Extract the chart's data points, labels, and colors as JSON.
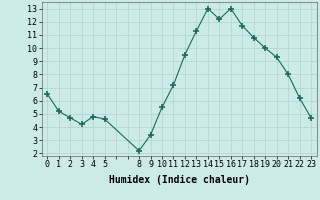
{
  "x": [
    0,
    1,
    2,
    3,
    4,
    5,
    8,
    9,
    10,
    11,
    12,
    13,
    14,
    15,
    16,
    17,
    18,
    19,
    20,
    21,
    22,
    23
  ],
  "y": [
    6.5,
    5.2,
    4.7,
    4.2,
    4.8,
    4.6,
    2.2,
    3.4,
    5.5,
    7.2,
    9.5,
    11.3,
    13.0,
    12.2,
    13.0,
    11.7,
    10.8,
    10.0,
    9.3,
    8.0,
    6.2,
    4.7
  ],
  "line_color": "#1a6b5a",
  "marker": "+",
  "marker_size": 4,
  "marker_lw": 1.2,
  "bg_color": "#cceae8",
  "grid_color": "#b0d4d0",
  "xlabel": "Humidex (Indice chaleur)",
  "xlabel_fontsize": 7,
  "tick_fontsize": 6,
  "xlim": [
    -0.5,
    23.5
  ],
  "ylim": [
    1.8,
    13.5
  ],
  "yticks": [
    2,
    3,
    4,
    5,
    6,
    7,
    8,
    9,
    10,
    11,
    12,
    13
  ],
  "xtick_labels": [
    "0",
    "1",
    "2",
    "3",
    "4",
    "5",
    "",
    "",
    "8",
    "9",
    "10",
    "11",
    "12",
    "13",
    "14",
    "15",
    "16",
    "17",
    "18",
    "19",
    "20",
    "21",
    "22",
    "23"
  ],
  "xtick_positions": [
    0,
    1,
    2,
    3,
    4,
    5,
    6,
    7,
    8,
    9,
    10,
    11,
    12,
    13,
    14,
    15,
    16,
    17,
    18,
    19,
    20,
    21,
    22,
    23
  ],
  "line_width": 0.8
}
